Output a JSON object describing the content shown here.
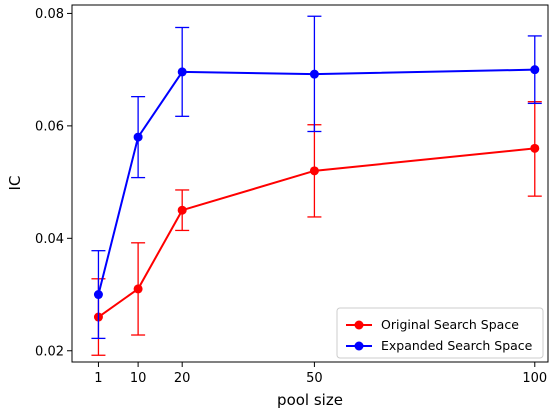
{
  "chart_data": {
    "type": "line",
    "xlabel": "pool size",
    "ylabel": "IC",
    "x": [
      1,
      10,
      20,
      50,
      100
    ],
    "xticks": [
      "1",
      "10",
      "20",
      "50",
      "100"
    ],
    "yticks": [
      "0.02",
      "0.04",
      "0.06",
      "0.08"
    ],
    "ylim": [
      0.018,
      0.0815
    ],
    "xlim": [
      -5,
      103
    ],
    "grid": false,
    "legend_position": "lower-right",
    "series": [
      {
        "name": "Original Search Space",
        "color": "#ff0000",
        "values": [
          0.026,
          0.031,
          0.045,
          0.052,
          0.056
        ],
        "err_low": [
          0.0192,
          0.0228,
          0.0414,
          0.0438,
          0.0475
        ],
        "err_high": [
          0.0328,
          0.0392,
          0.0486,
          0.0602,
          0.0643
        ]
      },
      {
        "name": "Expanded Search Space",
        "color": "#0000ff",
        "values": [
          0.03,
          0.058,
          0.0696,
          0.0692,
          0.07
        ],
        "err_low": [
          0.0222,
          0.0508,
          0.0617,
          0.059,
          0.064
        ],
        "err_high": [
          0.0378,
          0.0652,
          0.0775,
          0.0795,
          0.076
        ]
      }
    ]
  }
}
